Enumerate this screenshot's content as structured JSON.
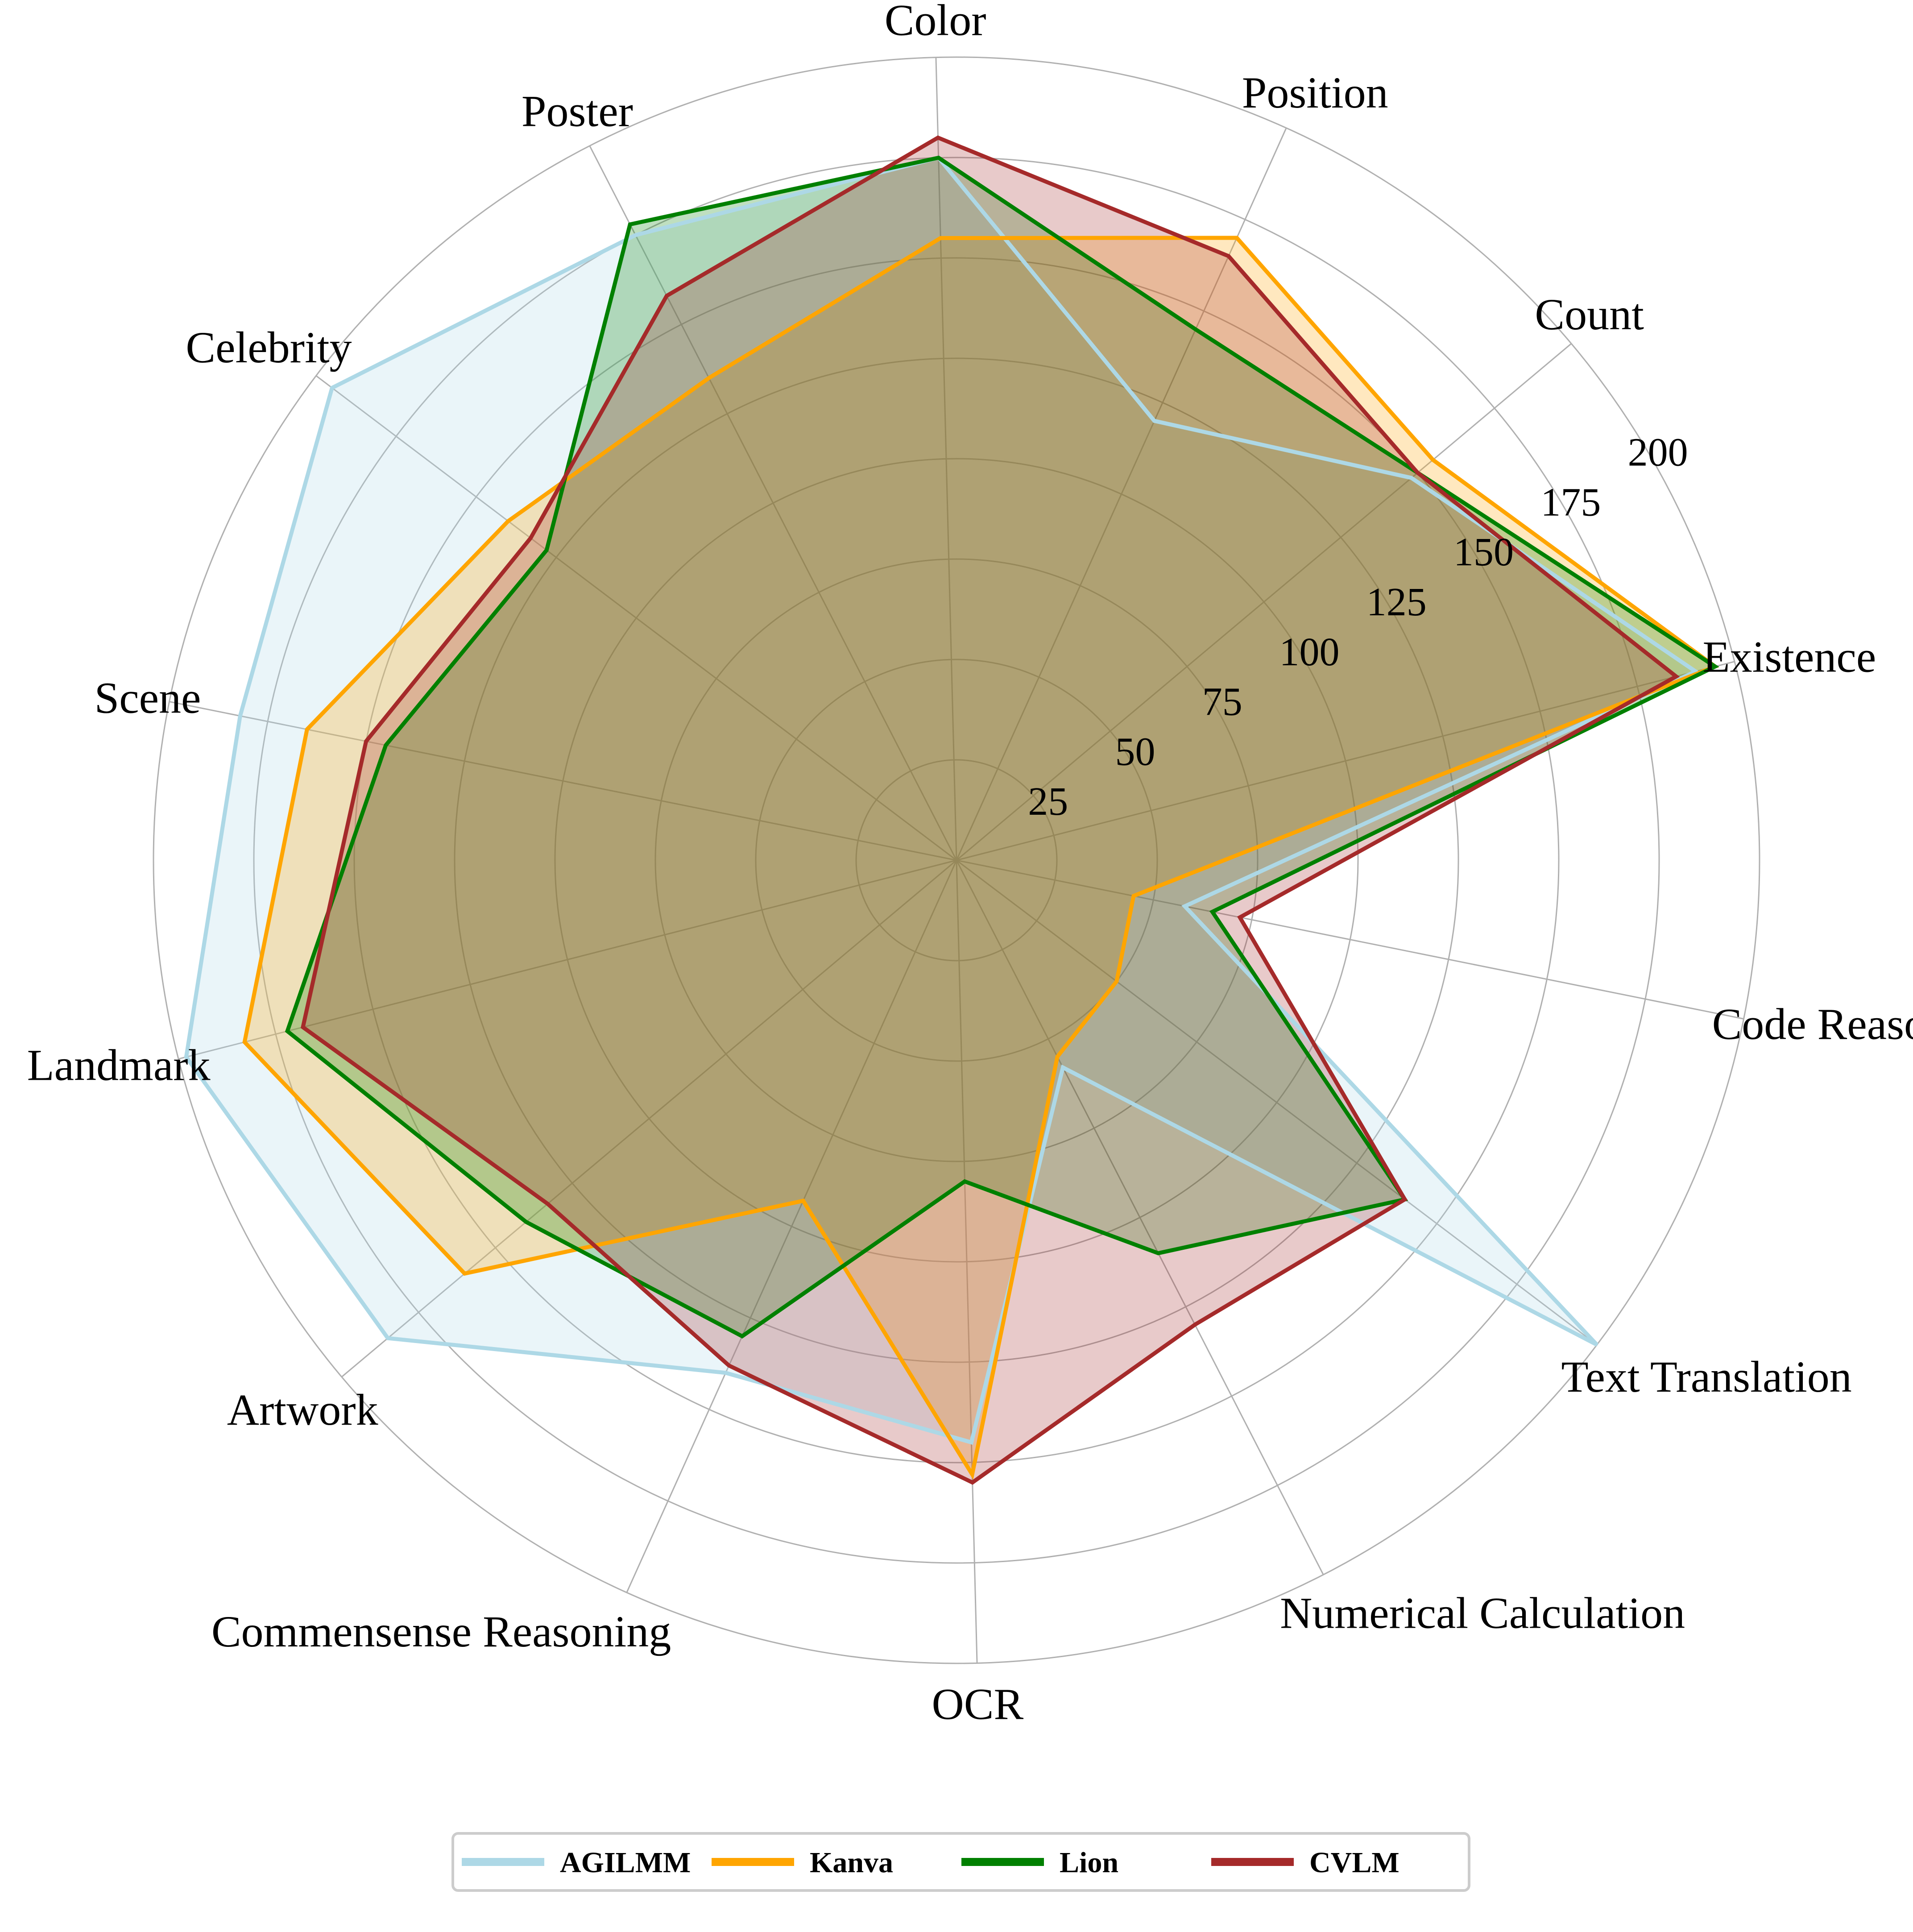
{
  "chart_data": {
    "type": "radar",
    "title": "",
    "r_range": [
      0,
      200
    ],
    "r_ticks": [
      "25",
      "50",
      "75",
      "100",
      "125",
      "150",
      "175",
      "200"
    ],
    "categories": [
      "Existence",
      "Count",
      "Position",
      "Color",
      "Poster",
      "Celebrity",
      "Scene",
      "Landmark",
      "Artwork",
      "Commensense Reasoning",
      "OCR",
      "Numerical Calculation",
      "Text Translation",
      "Code Reasoning"
    ],
    "series": [
      {
        "name": "AGILMM",
        "color": "#add8e6",
        "values": [
          190,
          148,
          120,
          175,
          175,
          195,
          182,
          198,
          185,
          140,
          145,
          58,
          200,
          58
        ]
      },
      {
        "name": "Kanva",
        "color": "#ffa500",
        "values": [
          195,
          155,
          170,
          155,
          135,
          140,
          165,
          183,
          160,
          93,
          153,
          55,
          50,
          45
        ]
      },
      {
        "name": "Lion",
        "color": "#008000",
        "values": [
          195,
          150,
          145,
          175,
          178,
          128,
          145,
          172,
          140,
          130,
          80,
          110,
          140,
          65
        ]
      },
      {
        "name": "CVLM",
        "color": "#a52a2a",
        "values": [
          185,
          150,
          165,
          180,
          158,
          133,
          150,
          168,
          133,
          138,
          155,
          130,
          140,
          72
        ]
      }
    ],
    "legend_position": "bottom-center",
    "grid": true
  }
}
